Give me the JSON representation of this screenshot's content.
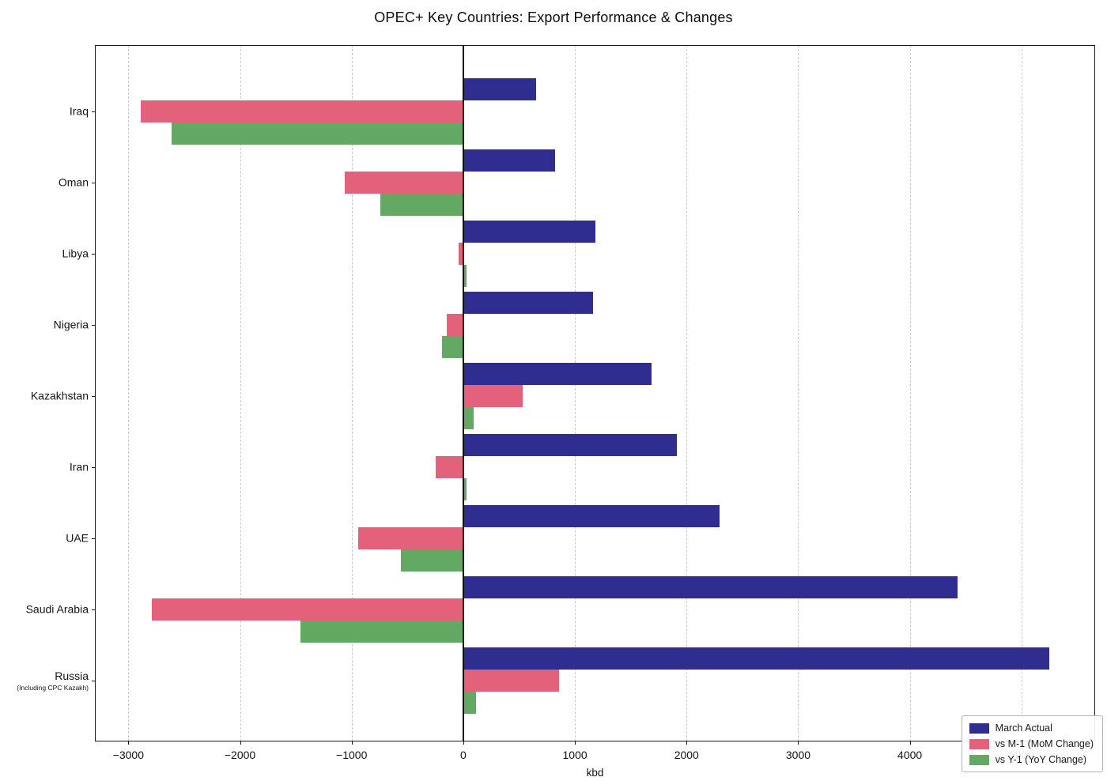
{
  "chart_data": {
    "type": "bar",
    "orientation": "horizontal",
    "title": "OPEC+ Key Countries: Export Performance & Changes",
    "xlabel": "kbd",
    "ylabel": "",
    "unit": "kbd",
    "xlim": [
      -3300,
      5660
    ],
    "x_ticks": [
      -3000,
      -2000,
      -1000,
      0,
      1000,
      2000,
      3000,
      4000,
      5000
    ],
    "grid": "vertical-dashed",
    "zero_line": true,
    "legend_position": "lower-right",
    "categories": [
      "Iraq",
      "Oman",
      "Libya",
      "Nigeria",
      "Kazakhstan",
      "Iran",
      "UAE",
      "Saudi Arabia",
      "Russia"
    ],
    "category_sublabels": [
      "",
      "",
      "",
      "",
      "",
      "",
      "",
      "",
      "(Including CPC Kazakh)"
    ],
    "series": [
      {
        "name": "March Actual",
        "color": "#2f2d90",
        "values": [
          655,
          825,
          1185,
          1160,
          1685,
          1910,
          2295,
          4425,
          5250
        ]
      },
      {
        "name": "vs M-1 (MoM Change)",
        "color": "#e4617c",
        "values": [
          -2890,
          -1060,
          -45,
          -150,
          530,
          -250,
          -940,
          -2790,
          860
        ]
      },
      {
        "name": "vs Y-1 (YoY Change)",
        "color": "#63a963",
        "values": [
          -2610,
          -740,
          30,
          -190,
          90,
          30,
          -560,
          -1460,
          115
        ]
      }
    ]
  }
}
